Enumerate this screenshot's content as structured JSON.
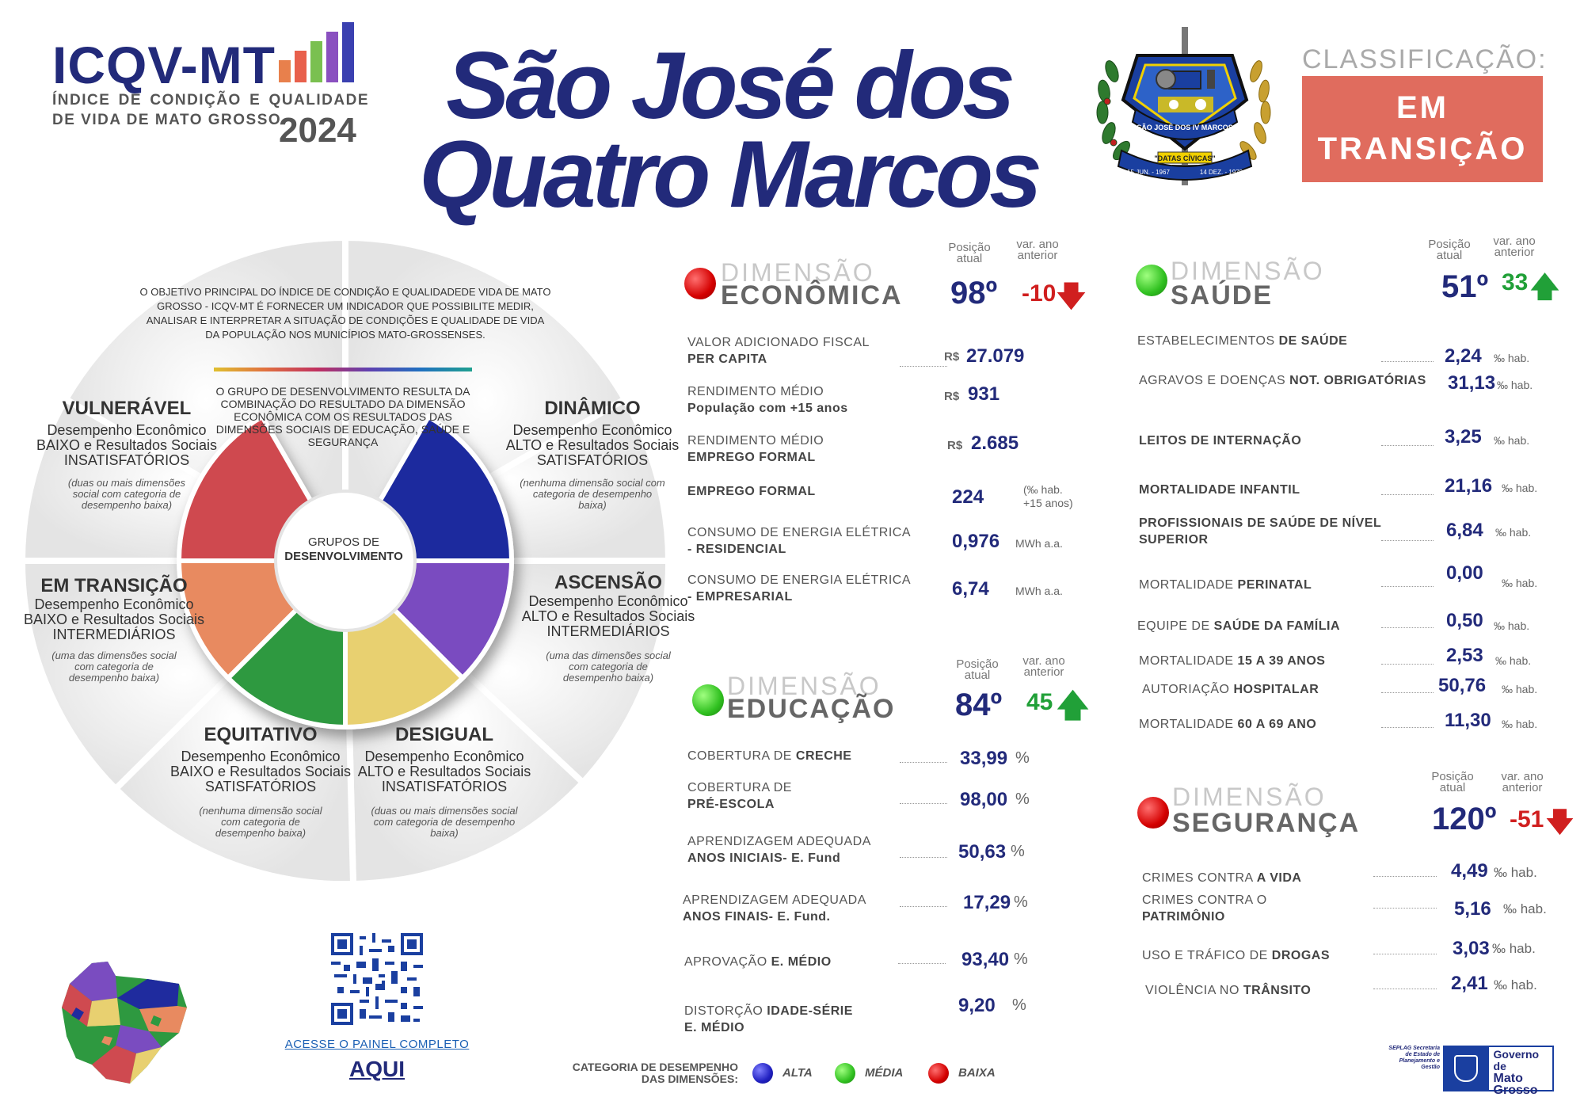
{
  "header": {
    "logo_title": "ICQV-MT",
    "logo_subtitle": "ÍNDICE DE CONDIÇÃO E QUALIDADE DE VIDA DE MATO GROSSO",
    "year": "2024",
    "city_line1": "São José dos",
    "city_line2": "Quatro Marcos",
    "classification_label": "CLASSIFICAÇÃO:",
    "classification_line1": "EM",
    "classification_line2": "TRANSIÇÃO",
    "classification_color": "#e06c5e"
  },
  "emblem": {
    "band_text": "SÃO JOSÉ DOS IV MARCOS",
    "ribbon_text": "\"DATAS CÍVICAS\"",
    "date_left": "15 JUN. - 1967",
    "date_right": "14 DEZ. - 1979"
  },
  "wheel": {
    "objective": "O OBJETIVO PRINCIPAL DO ÍNDICE DE CONDIÇÃO E QUALIDADEDE VIDA DE MATO GROSSO - ICQV-MT É FORNECER UM INDICADOR QUE POSSIBILITE MEDIR, ANALISAR E INTERPRETAR A SITUAÇÃO DE CONDIÇÕES E QUALIDADE DE VIDA DA POPULAÇÃO NOS MUNICÍPIOS MATO-GROSSENSES.",
    "group_text": "O GRUPO DE DESENVOLVIMENTO RESULTA DA COMBINAÇÃO DO RESULTADO DA DIMENSÃO ECONÔMICA COM OS RESULTADOS DAS DIMENSÕES SOCIAIS DE EDUCAÇÃO, SAÚDE E SEGURANÇA",
    "center_line1": "GRUPOS DE",
    "center_line2": "DESENVOLVIMENTO",
    "segments": {
      "vulneravel": {
        "title": "VULNERÁVEL",
        "desc": "Desempenho Econômico BAIXO e Resultados Sociais INSATISFATÓRIOS",
        "note": "(duas ou mais dimensões social com categoria de desempenho baixa)",
        "color": "#cf4a50"
      },
      "dinamico": {
        "title": "DINÂMICO",
        "desc": "Desempenho Econômico ALTO e Resultados Sociais SATISFATÓRIOS",
        "note": "(nenhuma dimensão social com categoria de desempenho baixa)",
        "color": "#1f2b9e"
      },
      "transicao": {
        "title": "EM TRANSIÇÃO",
        "desc": "Desempenho Econômico BAIXO e Resultados Sociais INTERMEDIÁRIOS",
        "note": "(uma das dimensões social com categoria de desempenho baixa)",
        "color": "#e88a60"
      },
      "ascensao": {
        "title": "ASCENSÃO",
        "desc": "Desempenho Econômico ALTO e Resultados Sociais INTERMEDIÁRIOS",
        "note": "(uma das dimensões social com categoria de desempenho baixa)",
        "color": "#7a4cc0"
      },
      "equitativo": {
        "title": "EQUITATIVO",
        "desc": "Desempenho Econômico BAIXO e Resultados Sociais SATISFATÓRIOS",
        "note": "(nenhuma dimensão social com categoria de desempenho baixa)",
        "color": "#2e9940"
      },
      "desigual": {
        "title": "DESIGUAL",
        "desc": "Desempenho Econômico ALTO e Resultados Sociais INSATISFATÓRIOS",
        "note": "(duas ou mais dimensões social com categoria de desempenho baixa)",
        "color": "#e8d070"
      }
    }
  },
  "col_headers": {
    "position": "Posição atual",
    "variation": "var. ano anterior"
  },
  "economica": {
    "dimension_word": "DIMENSÃO",
    "name": "ECONÔMICA",
    "category": "BAIXA",
    "rank": "98º",
    "variation": "-10",
    "variation_direction": "down",
    "indicators": [
      {
        "label1": "VALOR ADICIONADO FISCAL",
        "label2": "PER CAPITA",
        "currency": "R$",
        "value": "27.079",
        "unit": ""
      },
      {
        "label1": "RENDIMENTO MÉDIO",
        "label2": "População com +15 anos",
        "currency": "R$",
        "value": "931",
        "unit": ""
      },
      {
        "label1": "RENDIMENTO MÉDIO",
        "label2": "EMPREGO FORMAL",
        "currency": "R$",
        "value": "2.685",
        "unit": ""
      },
      {
        "label1": "",
        "label2": "EMPREGO FORMAL",
        "currency": "",
        "value": "224",
        "unit": "(‰ hab. +15 anos)"
      },
      {
        "label1": "CONSUMO DE ENERGIA ELÉTRICA",
        "label2": "- RESIDENCIAL",
        "currency": "",
        "value": "0,976",
        "unit": "MWh a.a."
      },
      {
        "label1": "CONSUMO DE ENERGIA ELÉTRICA",
        "label2": "- EMPRESARIAL",
        "currency": "",
        "value": "6,74",
        "unit": "MWh a.a."
      }
    ]
  },
  "saude": {
    "dimension_word": "DIMENSÃO",
    "name": "SAÚDE",
    "category": "MÉDIA",
    "rank": "51º",
    "variation": "33",
    "variation_direction": "up",
    "indicators": [
      {
        "label1": "ESTABELECIMENTOS",
        "label2": "DE SAÚDE",
        "value": "2,24",
        "unit": "‰ hab."
      },
      {
        "label1": "AGRAVOS E DOENÇAS",
        "label2": "NOT. OBRIGATÓRIAS",
        "value": "31,13",
        "unit": "‰ hab."
      },
      {
        "label1": "",
        "label2": "LEITOS DE INTERNAÇÃO",
        "value": "3,25",
        "unit": "‰ hab."
      },
      {
        "label1": "",
        "label2": "MORTALIDADE INFANTIL",
        "value": "21,16",
        "unit": "‰ hab."
      },
      {
        "label1": "PROFISSIONAIS DE SAÚDE DE NÍVEL",
        "label2": "SUPERIOR",
        "value": "6,84",
        "unit": "‰ hab."
      },
      {
        "label1": "MORTALIDADE",
        "label2": "PERINATAL",
        "value": "0,00",
        "unit": "‰ hab."
      },
      {
        "label1": "EQUIPE DE",
        "label2": "SAÚDE DA FAMÍLIA",
        "value": "0,50",
        "unit": "‰ hab."
      },
      {
        "label1": "MORTALIDADE",
        "label2": "15 A 39 ANOS",
        "value": "2,53",
        "unit": "‰ hab."
      },
      {
        "label1": "AUTORIAÇÃO",
        "label2": "HOSPITALAR",
        "value": "50,76",
        "unit": "‰ hab."
      },
      {
        "label1": "MORTALIDADE",
        "label2": "60 A 69 ANO",
        "value": "11,30",
        "unit": "‰ hab."
      }
    ]
  },
  "educacao": {
    "dimension_word": "DIMENSÃO",
    "name": "EDUCAÇÃO",
    "category": "MÉDIA",
    "rank": "84º",
    "variation": "45",
    "variation_direction": "up",
    "indicators": [
      {
        "label1": "COBERTURA DE",
        "label2": "CRECHE",
        "value": "33,99",
        "unit": "%"
      },
      {
        "label1": "COBERTURA DE",
        "label2": "PRÉ-ESCOLA",
        "value": "98,00",
        "unit": "%"
      },
      {
        "label1": "APRENDIZAGEM ADEQUADA",
        "label2": "ANOS INICIAIS- E. Fund",
        "value": "50,63",
        "unit": "%"
      },
      {
        "label1": "APRENDIZAGEM ADEQUADA",
        "label2": "ANOS FINAIS- E. Fund.",
        "value": "17,29",
        "unit": "%"
      },
      {
        "label1": "APROVAÇÃO",
        "label2": "E. MÉDIO",
        "value": "93,40",
        "unit": "%"
      },
      {
        "label1": "DISTORÇÃO",
        "label2": "IDADE-SÉRIE",
        "label3": "E. MÉDIO",
        "value": "9,20",
        "unit": "%"
      }
    ]
  },
  "seguranca": {
    "dimension_word": "DIMENSÃO",
    "name": "SEGURANÇA",
    "category": "BAIXA",
    "rank": "120º",
    "variation": "-51",
    "variation_direction": "down",
    "indicators": [
      {
        "label1": "CRIMES CONTRA",
        "label2": "A VIDA",
        "value": "4,49",
        "unit": "‰ hab."
      },
      {
        "label1": "CRIMES CONTRA O",
        "label2": "PATRIMÔNIO",
        "value": "5,16",
        "unit": "‰ hab."
      },
      {
        "label1": "USO E TRÁFICO DE",
        "label2": "DROGAS",
        "value": "3,03",
        "unit": "‰ hab."
      },
      {
        "label1": "VIOLÊNCIA NO",
        "label2": "TRÂNSITO",
        "value": "2,41",
        "unit": "‰ hab."
      }
    ]
  },
  "footer": {
    "panel_link": "ACESSE O PAINEL COMPLETO",
    "panel_aqui": "AQUI",
    "legend_title": "CATEGORIA DE DESEMPENHO DAS DIMENSÕES:",
    "legend": [
      {
        "label": "ALTA",
        "color": "#2020c0"
      },
      {
        "label": "MÉDIA",
        "color": "#30c020"
      },
      {
        "label": "BAIXA",
        "color": "#d40000"
      }
    ],
    "seplag": "SEPLAG Secretaria de Estado de Planejamento e Gestão",
    "gov_line1": "Governo de",
    "gov_line2": "Mato",
    "gov_line3": "Grosso"
  }
}
